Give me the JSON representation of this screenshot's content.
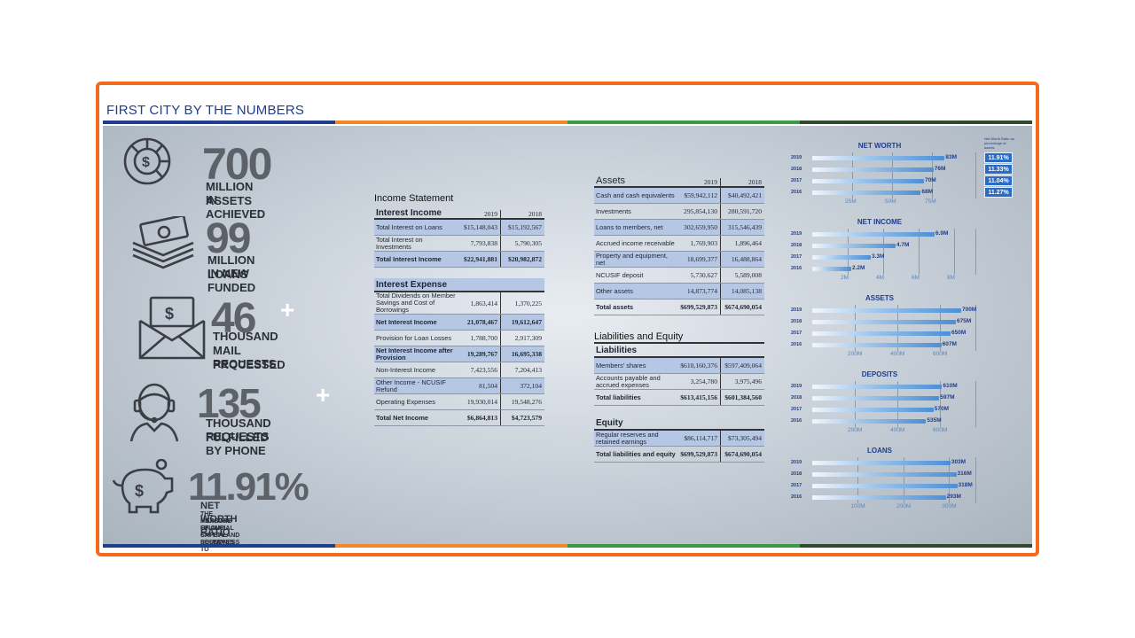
{
  "header": {
    "title": "FIRST CITY BY THE NUMBERS"
  },
  "colors": {
    "frame": "#f26a1b",
    "blue": "#1f3e8c",
    "orange": "#f2882a",
    "green": "#3c9a45",
    "dark_green": "#2f4a2c"
  },
  "stats": [
    {
      "icon": "dollar-coin-pie-icon",
      "number": "700",
      "plus": "",
      "line1": "MILLION IN",
      "line2": "ASSETS ACHIEVED",
      "line3": ""
    },
    {
      "icon": "money-stack-icon",
      "number": "99",
      "plus": "",
      "line1": "MILLION IN NEW",
      "line2": "LOANS FUNDED",
      "line3": ""
    },
    {
      "icon": "envelope-cash-icon",
      "number": "46",
      "plus": "+",
      "line1": "THOUSAND",
      "line2": "MAIL REQUESTS",
      "line3": "PROCESSED"
    },
    {
      "icon": "headset-agent-icon",
      "number": "135",
      "plus": "+",
      "line1": "THOUSAND REQUESTS",
      "line2": "FULFILLED BY PHONE",
      "line3": ""
    },
    {
      "icon": "piggy-bank-icon",
      "number": "11.91%",
      "plus": "",
      "line1": "NET WORTH RATIO",
      "line2": "THE MEASURE OF OUR CAPITAL RESERVES TO",
      "line3": "MAINTAIN FINANCIAL SAFETY AND SOUNDNESS"
    }
  ],
  "income_statement": {
    "title": "Income Statement",
    "interest_income": {
      "heading": "Interest Income",
      "col1": "2019",
      "col2": "2018",
      "rows": [
        {
          "label": "Total Interest on Loans",
          "v2019": "$15,148,043",
          "v2018": "$15,192,567",
          "hl": true,
          "bold": false
        },
        {
          "label": "Total Interest on Investments",
          "v2019": "7,793,838",
          "v2018": "5,790,305",
          "hl": false,
          "bold": false
        },
        {
          "label": "Total Interest Income",
          "v2019": "$22,941,881",
          "v2018": "$20,982,872",
          "hl": true,
          "bold": true
        }
      ]
    },
    "interest_expense": {
      "heading": "Interest Expense",
      "rows": [
        {
          "label": "Total Dividends on Member Savings and Cost of Borrowings",
          "v2019": "1,863,414",
          "v2018": "1,370,225",
          "hl": false,
          "bold": false
        },
        {
          "label": "Net Interest Income",
          "v2019": "21,078,467",
          "v2018": "19,612,647",
          "hl": true,
          "bold": true
        },
        {
          "label": "Provision for Loan Losses",
          "v2019": "1,788,700",
          "v2018": "2,917,309",
          "hl": false,
          "bold": false
        },
        {
          "label": "Net Interest Income after Provision",
          "v2019": "19,289,767",
          "v2018": "16,695,338",
          "hl": true,
          "bold": true
        },
        {
          "label": "Non-Interest Income",
          "v2019": "7,423,556",
          "v2018": "7,204,413",
          "hl": false,
          "bold": false
        },
        {
          "label": "Other Income - NCUSIF Refund",
          "v2019": "81,504",
          "v2018": "372,104",
          "hl": true,
          "bold": false
        },
        {
          "label": "Operating Expenses",
          "v2019": "19,930,014",
          "v2018": "19,548,276",
          "hl": false,
          "bold": false
        },
        {
          "label": "Total Net Income",
          "v2019": "$6,864,813",
          "v2018": "$4,723,579",
          "hl": false,
          "bold": true
        }
      ]
    }
  },
  "balance": {
    "assets": {
      "heading": "Assets",
      "col1": "2019",
      "col2": "2018",
      "rows": [
        {
          "label": "Cash and cash equivalents",
          "v2019": "$59,942,112",
          "v2018": "$40,492,421",
          "hl": true,
          "bold": false
        },
        {
          "label": "Investments",
          "v2019": "295,854,130",
          "v2018": "280,591,720",
          "hl": false,
          "bold": false
        },
        {
          "label": "Loans to members, net",
          "v2019": "302,659,950",
          "v2018": "315,546,439",
          "hl": true,
          "bold": false
        },
        {
          "label": "Accrued income receivable",
          "v2019": "1,769,903",
          "v2018": "1,896,464",
          "hl": false,
          "bold": false
        },
        {
          "label": "Property and equipment, net",
          "v2019": "18,699,377",
          "v2018": "16,488,864",
          "hl": true,
          "bold": false
        },
        {
          "label": "NCUSIF deposit",
          "v2019": "5,730,627",
          "v2018": "5,589,008",
          "hl": false,
          "bold": false
        },
        {
          "label": "Other assets",
          "v2019": "14,873,774",
          "v2018": "14,085,138",
          "hl": true,
          "bold": false
        },
        {
          "label": "Total assets",
          "v2019": "$699,529,873",
          "v2018": "$674,690,054",
          "hl": false,
          "bold": true
        }
      ]
    },
    "le_title": "Liabilities and Equity",
    "liabilities": {
      "heading": "Liabilities",
      "rows": [
        {
          "label": "Members' shares",
          "v2019": "$610,160,376",
          "v2018": "$597,409,064",
          "hl": true,
          "bold": false
        },
        {
          "label": "Accounts payable and accrued expenses",
          "v2019": "3,254,780",
          "v2018": "3,975,496",
          "hl": false,
          "bold": false
        },
        {
          "label": "Total liabilities",
          "v2019": "$613,415,156",
          "v2018": "$601,384,560",
          "hl": false,
          "bold": true
        }
      ]
    },
    "equity": {
      "heading": "Equity",
      "rows": [
        {
          "label": "Regular reserves and retained earnings",
          "v2019": "$86,114,717",
          "v2018": "$73,305,494",
          "hl": true,
          "bold": false
        },
        {
          "label": "Total liabilities and equity",
          "v2019": "$699,529,873",
          "v2018": "$674,690,054",
          "hl": false,
          "bold": true
        }
      ]
    }
  },
  "chart_data": [
    {
      "type": "bar",
      "title": "NET WORTH",
      "categories": [
        "2019",
        "2018",
        "2017",
        "2016"
      ],
      "values": [
        83,
        76,
        70,
        68
      ],
      "labels": [
        "83M",
        "76M",
        "70M",
        "68M"
      ],
      "xticks": [
        "25M",
        "50M",
        "75M"
      ],
      "xtick_values": [
        25,
        50,
        75
      ],
      "xlim": [
        0,
        100
      ],
      "ratio_note": "Net Worth Ratio as percentage of assets",
      "ratios": [
        "11.91%",
        "11.33%",
        "11.04%",
        "11.27%"
      ]
    },
    {
      "type": "bar",
      "title": "NET INCOME",
      "categories": [
        "2019",
        "2018",
        "2017",
        "2016"
      ],
      "values": [
        6.9,
        4.7,
        3.3,
        2.2
      ],
      "labels": [
        "6.9M",
        "4.7M",
        "3.3M",
        "2.2M"
      ],
      "xticks": [
        "2M",
        "4M",
        "6M",
        "8M"
      ],
      "xtick_values": [
        2,
        4,
        6,
        8
      ],
      "xlim": [
        0,
        9
      ]
    },
    {
      "type": "bar",
      "title": "ASSETS",
      "categories": [
        "2019",
        "2018",
        "2017",
        "2016"
      ],
      "values": [
        700,
        675,
        650,
        607
      ],
      "labels": [
        "700M",
        "675M",
        "650M",
        "607M"
      ],
      "xticks": [
        "200M",
        "400M",
        "600M"
      ],
      "xtick_values": [
        200,
        400,
        600
      ],
      "xlim": [
        0,
        750
      ]
    },
    {
      "type": "bar",
      "title": "DEPOSITS",
      "categories": [
        "2019",
        "2018",
        "2017",
        "2016"
      ],
      "values": [
        610,
        597,
        570,
        535
      ],
      "labels": [
        "610M",
        "597M",
        "570M",
        "535M"
      ],
      "xticks": [
        "200M",
        "400M",
        "600M"
      ],
      "xtick_values": [
        200,
        400,
        600
      ],
      "xlim": [
        0,
        750
      ]
    },
    {
      "type": "bar",
      "title": "LOANS",
      "categories": [
        "2019",
        "2018",
        "2017",
        "2016"
      ],
      "values": [
        303,
        316,
        318,
        293
      ],
      "labels": [
        "303M",
        "316M",
        "318M",
        "293M"
      ],
      "xticks": [
        "100M",
        "200M",
        "300M"
      ],
      "xtick_values": [
        100,
        200,
        300
      ],
      "xlim": [
        0,
        350
      ]
    }
  ]
}
